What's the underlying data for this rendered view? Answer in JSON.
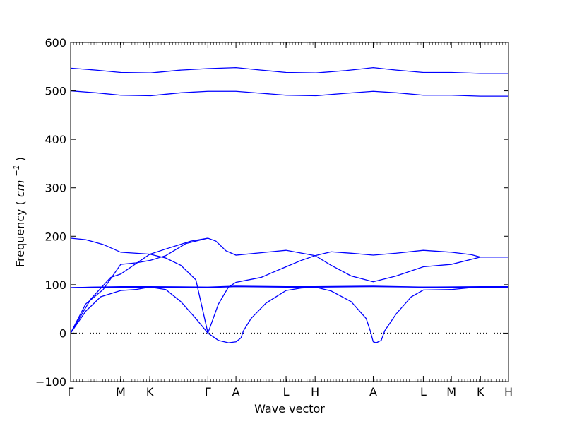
{
  "chart_data": {
    "type": "line",
    "title": "",
    "xlabel": "Wave vector",
    "ylabel": "Frequency",
    "ylabel_unit": "cm",
    "ylabel_unit_exp": "−1",
    "ylim": [
      -100,
      600
    ],
    "yticks": [
      -100,
      0,
      100,
      200,
      300,
      400,
      500,
      600
    ],
    "ytick_labels": [
      "−100",
      "0",
      "100",
      "200",
      "300",
      "400",
      "500",
      "600"
    ],
    "high_symmetry_points": [
      {
        "label": "Γ",
        "x": 0.0
      },
      {
        "label": "M",
        "x": 1.0
      },
      {
        "label": "K",
        "x": 1.58
      },
      {
        "label": "Γ",
        "x": 2.74
      },
      {
        "label": "A",
        "x": 3.3
      },
      {
        "label": "L",
        "x": 4.3
      },
      {
        "label": "H",
        "x": 4.88
      },
      {
        "label": "A",
        "x": 6.04
      },
      {
        "label": "L",
        "x": 7.04
      },
      {
        "label": "M",
        "x": 7.6
      },
      {
        "label": "K",
        "x": 8.18
      },
      {
        "label": "H",
        "x": 8.74
      }
    ],
    "xlim": [
      0,
      8.74
    ],
    "zero_line": true,
    "line_color": "#0000ff",
    "series": [
      {
        "points": [
          [
            0,
            547
          ],
          [
            0.5,
            543
          ],
          [
            1,
            538
          ],
          [
            1.6,
            537
          ],
          [
            2.2,
            543
          ],
          [
            2.74,
            546
          ],
          [
            3.0,
            547
          ],
          [
            3.3,
            548
          ],
          [
            3.8,
            543
          ],
          [
            4.3,
            538
          ],
          [
            4.9,
            537
          ],
          [
            5.5,
            542
          ],
          [
            6.04,
            548
          ],
          [
            6.5,
            543
          ],
          [
            7.04,
            538
          ],
          [
            7.6,
            538
          ],
          [
            8.18,
            536
          ],
          [
            8.74,
            536
          ]
        ]
      },
      {
        "points": [
          [
            0,
            500
          ],
          [
            0.5,
            496
          ],
          [
            1,
            491
          ],
          [
            1.6,
            490
          ],
          [
            2.2,
            496
          ],
          [
            2.74,
            499
          ],
          [
            3.3,
            499
          ],
          [
            3.8,
            495
          ],
          [
            4.3,
            491
          ],
          [
            4.9,
            490
          ],
          [
            5.5,
            495
          ],
          [
            6.04,
            499
          ],
          [
            6.5,
            496
          ],
          [
            7.04,
            491
          ],
          [
            7.6,
            491
          ],
          [
            8.18,
            489
          ],
          [
            8.74,
            489
          ]
        ]
      },
      {
        "points": [
          [
            0,
            196
          ],
          [
            0.3,
            193
          ],
          [
            0.65,
            183
          ],
          [
            1,
            167
          ],
          [
            1.58,
            163
          ],
          [
            1.9,
            155
          ],
          [
            2.2,
            140
          ],
          [
            2.5,
            110
          ],
          [
            2.74,
            0
          ],
          [
            2.95,
            -15
          ],
          [
            3.15,
            -20
          ],
          [
            3.3,
            -18
          ],
          [
            3.4,
            -10
          ],
          [
            3.45,
            5
          ],
          [
            3.6,
            30
          ],
          [
            3.9,
            62
          ],
          [
            4.3,
            88
          ],
          [
            4.6,
            93
          ],
          [
            4.88,
            95
          ],
          [
            5.2,
            87
          ],
          [
            5.6,
            65
          ],
          [
            5.9,
            30
          ],
          [
            5.98,
            5
          ],
          [
            6.04,
            -18
          ],
          [
            6.1,
            -20
          ],
          [
            6.2,
            -15
          ],
          [
            6.27,
            5
          ],
          [
            6.5,
            40
          ],
          [
            6.8,
            75
          ],
          [
            7.04,
            89
          ],
          [
            7.6,
            90
          ],
          [
            8.0,
            94
          ],
          [
            8.18,
            95
          ],
          [
            8.74,
            95
          ]
        ]
      },
      {
        "points": [
          [
            0,
            0
          ],
          [
            0.4,
            70
          ],
          [
            0.8,
            115
          ],
          [
            1,
            122
          ],
          [
            1.58,
            163
          ],
          [
            2.0,
            177
          ],
          [
            2.4,
            190
          ],
          [
            2.74,
            196
          ],
          [
            2.9,
            190
          ],
          [
            3.1,
            170
          ],
          [
            3.3,
            161
          ],
          [
            3.8,
            166
          ],
          [
            4.3,
            171
          ],
          [
            4.88,
            160
          ],
          [
            5.2,
            140
          ],
          [
            5.6,
            118
          ],
          [
            6.04,
            106
          ],
          [
            6.5,
            118
          ],
          [
            7.04,
            137
          ],
          [
            7.6,
            142
          ],
          [
            8.18,
            157
          ],
          [
            8.74,
            157
          ]
        ]
      },
      {
        "points": [
          [
            0,
            0
          ],
          [
            0.3,
            60
          ],
          [
            0.65,
            90
          ],
          [
            1,
            142
          ],
          [
            1.3,
            145
          ],
          [
            1.58,
            150
          ],
          [
            1.9,
            160
          ],
          [
            2.3,
            185
          ],
          [
            2.74,
            196
          ]
        ]
      },
      {
        "points": [
          [
            2.74,
            0
          ],
          [
            2.95,
            60
          ],
          [
            3.15,
            95
          ],
          [
            3.3,
            105
          ],
          [
            3.8,
            115
          ],
          [
            4.3,
            137
          ],
          [
            4.6,
            150
          ],
          [
            4.88,
            160
          ],
          [
            5.2,
            168
          ],
          [
            5.6,
            165
          ],
          [
            6.04,
            161
          ],
          [
            6.5,
            165
          ],
          [
            7.04,
            171
          ],
          [
            7.6,
            167
          ],
          [
            8.0,
            162
          ],
          [
            8.18,
            157
          ],
          [
            8.74,
            157
          ]
        ]
      },
      {
        "points": [
          [
            0,
            0
          ],
          [
            0.3,
            45
          ],
          [
            0.6,
            75
          ],
          [
            1,
            88
          ],
          [
            1.3,
            90
          ],
          [
            1.58,
            95
          ],
          [
            1.9,
            90
          ],
          [
            2.2,
            65
          ],
          [
            2.5,
            30
          ],
          [
            2.74,
            0
          ]
        ]
      },
      {
        "points": [
          [
            0,
            94
          ],
          [
            0.6,
            95
          ],
          [
            1,
            95
          ],
          [
            1.58,
            95
          ],
          [
            2.74,
            94
          ],
          [
            3.3,
            96
          ],
          [
            4.3,
            95
          ],
          [
            4.88,
            95
          ],
          [
            6.04,
            96
          ],
          [
            7.04,
            95
          ],
          [
            7.6,
            95
          ],
          [
            8.18,
            95
          ],
          [
            8.74,
            94
          ]
        ]
      },
      {
        "points": [
          [
            0,
            94
          ],
          [
            1,
            96
          ],
          [
            1.58,
            96
          ],
          [
            2.74,
            95
          ],
          [
            3.3,
            97
          ],
          [
            4.3,
            96
          ],
          [
            4.88,
            96
          ],
          [
            6.04,
            97
          ],
          [
            7.04,
            95
          ],
          [
            8.18,
            96
          ],
          [
            8.74,
            96
          ]
        ]
      }
    ]
  }
}
